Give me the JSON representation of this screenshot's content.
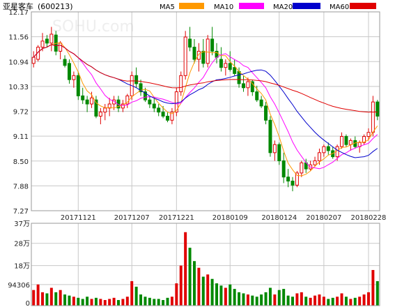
{
  "title": "亚星客车",
  "code": "(600213)",
  "watermark": "SOHU.com",
  "legend": [
    {
      "name": "MA5",
      "color": "#ff9900"
    },
    {
      "name": "MA10",
      "color": "#ff00ff"
    },
    {
      "name": "MA20",
      "color": "#0000cc"
    },
    {
      "name": "MA60",
      "color": "#e00000"
    }
  ],
  "colors": {
    "up": "#e00000",
    "down": "#008800"
  },
  "chart_data": {
    "type": "candlestick",
    "price_ticks": [
      "12.17",
      "11.56",
      "10.94",
      "10.33",
      "9.72",
      "9.11",
      "8.50",
      "7.88",
      "7.27"
    ],
    "price_range": [
      7.27,
      12.17
    ],
    "x_labels": [
      {
        "text": "20171121",
        "index": 10
      },
      {
        "text": "20171207",
        "index": 22
      },
      {
        "text": "20171221",
        "index": 32
      },
      {
        "text": "20180109",
        "index": 44
      },
      {
        "text": "20180124",
        "index": 55
      },
      {
        "text": "20180207",
        "index": 65
      },
      {
        "text": "20180228",
        "index": 75
      }
    ],
    "volume_ticks": [
      "37万",
      "28万",
      "18万",
      "94306",
      "0"
    ],
    "volume_range": [
      0,
      370000
    ],
    "ohlc": [
      [
        10.9,
        11.2,
        10.8,
        11.05
      ],
      [
        11.0,
        11.35,
        10.95,
        11.3
      ],
      [
        11.3,
        11.65,
        11.2,
        11.45
      ],
      [
        11.5,
        11.6,
        11.3,
        11.4
      ],
      [
        11.4,
        11.8,
        11.2,
        11.62
      ],
      [
        11.6,
        11.7,
        11.1,
        11.2
      ],
      [
        11.2,
        11.45,
        11.0,
        11.4
      ],
      [
        11.0,
        11.1,
        10.8,
        10.85
      ],
      [
        10.9,
        11.0,
        10.4,
        10.5
      ],
      [
        10.5,
        10.7,
        10.3,
        10.6
      ],
      [
        10.6,
        10.7,
        10.0,
        10.1
      ],
      [
        10.1,
        10.3,
        9.9,
        10.0
      ],
      [
        10.0,
        10.1,
        9.7,
        9.9
      ],
      [
        9.9,
        10.2,
        9.8,
        10.05
      ],
      [
        10.0,
        10.1,
        9.55,
        9.6
      ],
      [
        9.6,
        9.8,
        9.4,
        9.7
      ],
      [
        9.7,
        9.9,
        9.5,
        9.8
      ],
      [
        9.8,
        10.05,
        9.6,
        9.9
      ],
      [
        9.9,
        10.1,
        9.75,
        10.0
      ],
      [
        10.0,
        10.1,
        9.7,
        9.8
      ],
      [
        9.8,
        10.0,
        9.7,
        9.9
      ],
      [
        9.9,
        10.15,
        9.8,
        10.1
      ],
      [
        10.1,
        10.7,
        10.0,
        10.6
      ],
      [
        10.6,
        10.8,
        10.3,
        10.4
      ],
      [
        10.4,
        10.5,
        10.1,
        10.2
      ],
      [
        10.2,
        10.3,
        9.95,
        10.0
      ],
      [
        10.0,
        10.1,
        9.8,
        9.9
      ],
      [
        9.9,
        10.05,
        9.7,
        9.8
      ],
      [
        9.8,
        9.9,
        9.6,
        9.7
      ],
      [
        9.7,
        9.85,
        9.55,
        9.6
      ],
      [
        9.6,
        9.7,
        9.45,
        9.5
      ],
      [
        9.5,
        9.8,
        9.4,
        9.7
      ],
      [
        9.7,
        10.3,
        9.6,
        10.2
      ],
      [
        10.2,
        10.7,
        10.1,
        10.6
      ],
      [
        10.6,
        11.7,
        10.5,
        11.55
      ],
      [
        11.5,
        11.8,
        11.2,
        11.3
      ],
      [
        11.3,
        11.5,
        10.9,
        11.0
      ],
      [
        11.0,
        11.4,
        10.7,
        11.2
      ],
      [
        11.2,
        11.5,
        10.8,
        10.9
      ],
      [
        10.9,
        11.6,
        10.8,
        11.5
      ],
      [
        11.5,
        11.8,
        11.1,
        11.2
      ],
      [
        11.2,
        11.4,
        10.9,
        11.05
      ],
      [
        11.0,
        11.3,
        10.7,
        10.8
      ],
      [
        10.8,
        11.0,
        10.6,
        10.9
      ],
      [
        10.9,
        11.2,
        10.7,
        10.75
      ],
      [
        10.8,
        11.0,
        10.6,
        10.65
      ],
      [
        10.7,
        10.8,
        10.3,
        10.4
      ],
      [
        10.4,
        10.6,
        10.2,
        10.3
      ],
      [
        10.3,
        10.55,
        10.1,
        10.45
      ],
      [
        10.45,
        10.5,
        10.1,
        10.2
      ],
      [
        10.2,
        10.35,
        9.95,
        10.0
      ],
      [
        10.0,
        10.1,
        9.8,
        9.85
      ],
      [
        9.85,
        9.95,
        9.4,
        9.5
      ],
      [
        9.5,
        9.6,
        8.6,
        8.7
      ],
      [
        8.7,
        9.0,
        8.5,
        8.9
      ],
      [
        8.9,
        8.95,
        8.4,
        8.5
      ],
      [
        8.5,
        8.7,
        7.95,
        8.1
      ],
      [
        8.1,
        8.3,
        7.85,
        8.0
      ],
      [
        8.0,
        8.1,
        7.75,
        7.9
      ],
      [
        7.9,
        8.25,
        7.85,
        8.2
      ],
      [
        8.2,
        8.5,
        8.1,
        8.45
      ],
      [
        8.45,
        8.55,
        8.2,
        8.3
      ],
      [
        8.3,
        8.5,
        8.25,
        8.4
      ],
      [
        8.4,
        8.6,
        8.35,
        8.5
      ],
      [
        8.5,
        8.8,
        8.4,
        8.7
      ],
      [
        8.7,
        8.9,
        8.6,
        8.85
      ],
      [
        8.85,
        8.95,
        8.65,
        8.75
      ],
      [
        8.75,
        8.85,
        8.55,
        8.6
      ],
      [
        8.6,
        8.9,
        8.5,
        8.85
      ],
      [
        8.85,
        9.2,
        8.8,
        9.1
      ],
      [
        9.1,
        9.15,
        8.85,
        8.9
      ],
      [
        8.9,
        9.05,
        8.75,
        9.0
      ],
      [
        9.0,
        9.1,
        8.8,
        8.85
      ],
      [
        8.85,
        9.0,
        8.7,
        8.95
      ],
      [
        8.95,
        9.15,
        8.9,
        9.1
      ],
      [
        9.1,
        9.3,
        9.0,
        9.2
      ],
      [
        9.2,
        10.1,
        9.1,
        9.95
      ],
      [
        9.95,
        10.0,
        9.5,
        9.6
      ]
    ],
    "volume": [
      70000,
      95000,
      60000,
      55000,
      80000,
      60000,
      70000,
      50000,
      45000,
      40000,
      35000,
      30000,
      40000,
      30000,
      35000,
      30000,
      25000,
      30000,
      35000,
      25000,
      30000,
      40000,
      110000,
      85000,
      50000,
      40000,
      35000,
      30000,
      30000,
      25000,
      35000,
      40000,
      100000,
      180000,
      330000,
      260000,
      200000,
      170000,
      130000,
      140000,
      120000,
      100000,
      90000,
      80000,
      95000,
      75000,
      60000,
      55000,
      50000,
      45000,
      40000,
      50000,
      60000,
      80000,
      50000,
      70000,
      75000,
      45000,
      40000,
      55000,
      60000,
      40000,
      35000,
      45000,
      50000,
      40000,
      30000,
      35000,
      40000,
      55000,
      40000,
      30000,
      35000,
      40000,
      50000,
      60000,
      160000,
      110000
    ]
  }
}
